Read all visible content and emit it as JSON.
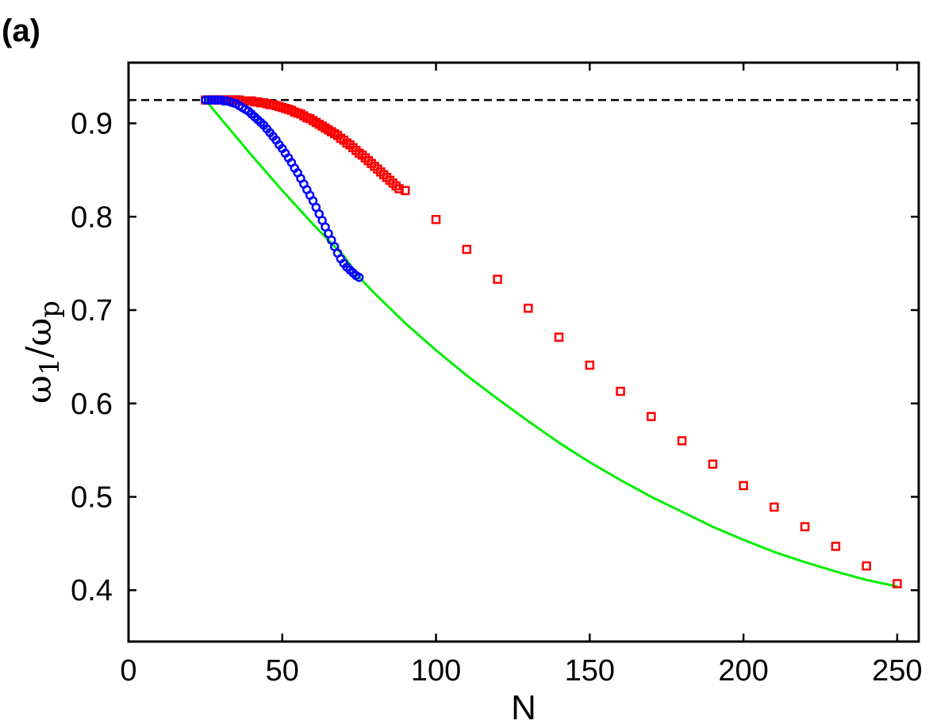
{
  "panel_label": "(a)",
  "chart_data": {
    "type": "scatter",
    "title": "",
    "xlabel": "N",
    "ylabel": {
      "main": "ω",
      "sub1": "1",
      "slash": "/ω",
      "sub2": "p"
    },
    "xlim": [
      0,
      257
    ],
    "ylim": [
      0.345,
      0.965
    ],
    "xticks": [
      0,
      50,
      100,
      150,
      200,
      250
    ],
    "yticks": [
      0.4,
      0.5,
      0.6,
      0.7,
      0.8,
      0.9
    ],
    "grid": false,
    "legend": "none",
    "reference_line": {
      "y": 0.925,
      "style": "dashed",
      "color": "#000000"
    },
    "series": [
      {
        "marker": "square",
        "color": "#ff0000",
        "x": [
          25,
          26,
          27,
          28,
          29,
          30,
          31,
          32,
          33,
          34,
          35,
          36,
          37,
          38,
          39,
          40,
          41,
          42,
          43,
          44,
          45,
          46,
          47,
          48,
          49,
          50,
          51,
          52,
          53,
          54,
          55,
          56,
          57,
          58,
          59,
          60,
          61,
          62,
          63,
          64,
          65,
          66,
          67,
          68,
          69,
          70,
          71,
          72,
          73,
          74,
          75,
          76,
          77,
          78,
          79,
          80,
          81,
          82,
          83,
          84,
          85,
          86,
          87,
          88,
          90,
          100,
          110,
          120,
          130,
          140,
          150,
          160,
          170,
          180,
          190,
          200,
          210,
          220,
          230,
          240,
          250
        ],
        "y": [
          0.925,
          0.925,
          0.925,
          0.925,
          0.925,
          0.925,
          0.925,
          0.925,
          0.925,
          0.925,
          0.925,
          0.925,
          0.924,
          0.924,
          0.924,
          0.924,
          0.923,
          0.923,
          0.922,
          0.922,
          0.921,
          0.92,
          0.92,
          0.919,
          0.918,
          0.917,
          0.916,
          0.915,
          0.914,
          0.912,
          0.911,
          0.91,
          0.908,
          0.906,
          0.905,
          0.903,
          0.901,
          0.899,
          0.897,
          0.895,
          0.893,
          0.891,
          0.889,
          0.887,
          0.884,
          0.882,
          0.879,
          0.877,
          0.874,
          0.871,
          0.868,
          0.866,
          0.863,
          0.86,
          0.857,
          0.854,
          0.851,
          0.848,
          0.845,
          0.842,
          0.839,
          0.836,
          0.833,
          0.83,
          0.828,
          0.797,
          0.765,
          0.733,
          0.702,
          0.671,
          0.641,
          0.613,
          0.586,
          0.56,
          0.535,
          0.512,
          0.489,
          0.468,
          0.447,
          0.426,
          0.407
        ]
      },
      {
        "marker": "circle",
        "color": "#0000ff",
        "x": [
          25,
          26,
          27,
          28,
          29,
          30,
          31,
          32,
          33,
          34,
          35,
          36,
          37,
          38,
          39,
          40,
          41,
          42,
          43,
          44,
          45,
          46,
          47,
          48,
          49,
          50,
          51,
          52,
          53,
          54,
          55,
          56,
          57,
          58,
          59,
          60,
          61,
          62,
          63,
          64,
          65,
          66,
          67,
          68,
          69,
          70,
          71,
          72,
          73,
          74,
          75
        ],
        "y": [
          0.925,
          0.925,
          0.925,
          0.925,
          0.925,
          0.925,
          0.924,
          0.924,
          0.923,
          0.922,
          0.921,
          0.919,
          0.917,
          0.915,
          0.913,
          0.91,
          0.907,
          0.904,
          0.901,
          0.898,
          0.894,
          0.89,
          0.886,
          0.882,
          0.877,
          0.873,
          0.868,
          0.863,
          0.858,
          0.852,
          0.847,
          0.841,
          0.835,
          0.829,
          0.823,
          0.817,
          0.81,
          0.803,
          0.796,
          0.789,
          0.782,
          0.775,
          0.768,
          0.761,
          0.755,
          0.75,
          0.746,
          0.743,
          0.74,
          0.737,
          0.735
        ]
      },
      {
        "marker": "line",
        "color": "#00ee00",
        "x": [
          25,
          30,
          40,
          50,
          60,
          70,
          75,
          80,
          90,
          100,
          110,
          120,
          130,
          140,
          150,
          160,
          170,
          180,
          190,
          200,
          210,
          220,
          230,
          240,
          250
        ],
        "y": [
          0.925,
          0.905,
          0.866,
          0.828,
          0.792,
          0.758,
          0.735,
          0.718,
          0.686,
          0.657,
          0.63,
          0.605,
          0.581,
          0.558,
          0.537,
          0.518,
          0.5,
          0.484,
          0.468,
          0.454,
          0.441,
          0.43,
          0.42,
          0.411,
          0.404
        ]
      }
    ]
  }
}
